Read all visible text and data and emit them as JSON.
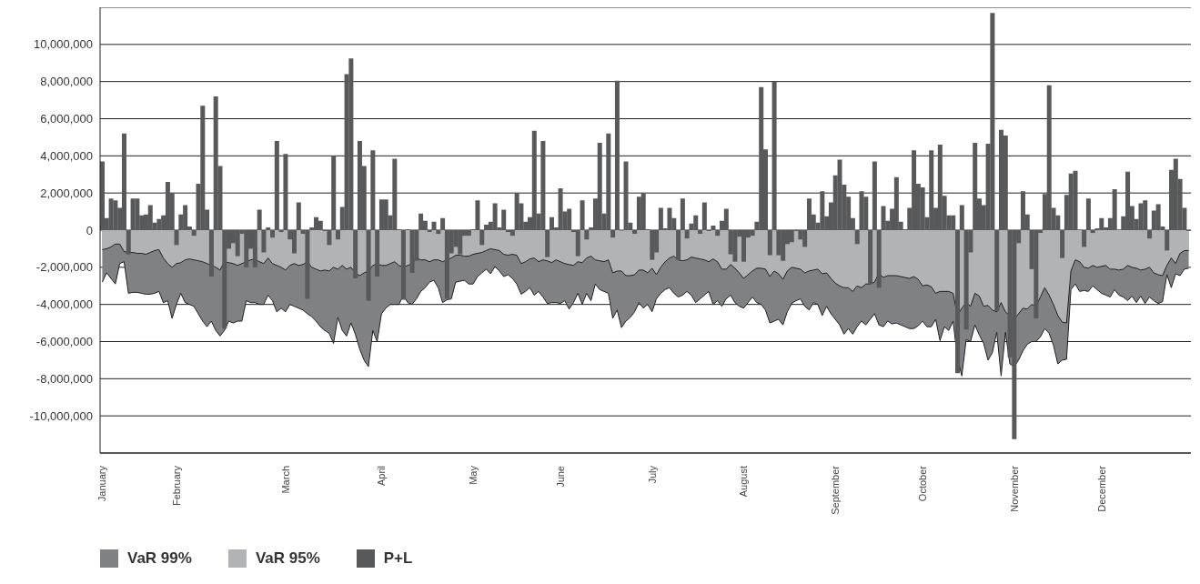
{
  "chart_data": {
    "type": "bar",
    "categories": [
      "January",
      null,
      null,
      null,
      null,
      null,
      null,
      null,
      null,
      null,
      null,
      null,
      null,
      null,
      null,
      null,
      null,
      "February",
      null,
      null,
      null,
      null,
      null,
      null,
      null,
      null,
      null,
      null,
      null,
      null,
      null,
      null,
      null,
      null,
      null,
      null,
      null,
      null,
      null,
      null,
      null,
      null,
      "March",
      null,
      null,
      null,
      null,
      null,
      null,
      null,
      null,
      null,
      null,
      null,
      null,
      null,
      null,
      null,
      null,
      null,
      null,
      null,
      null,
      null,
      "April",
      null,
      null,
      null,
      null,
      null,
      null,
      null,
      null,
      null,
      null,
      null,
      null,
      null,
      null,
      null,
      null,
      null,
      null,
      null,
      null,
      "May",
      null,
      null,
      null,
      null,
      null,
      null,
      null,
      null,
      null,
      null,
      null,
      null,
      null,
      null,
      null,
      null,
      null,
      null,
      null,
      "June",
      null,
      null,
      null,
      null,
      null,
      null,
      null,
      null,
      null,
      null,
      null,
      null,
      null,
      null,
      null,
      null,
      null,
      null,
      null,
      null,
      "July",
      null,
      null,
      null,
      null,
      null,
      null,
      null,
      null,
      null,
      null,
      null,
      null,
      null,
      null,
      null,
      null,
      null,
      null,
      null,
      null,
      "August",
      null,
      null,
      null,
      null,
      null,
      null,
      null,
      null,
      null,
      null,
      null,
      null,
      null,
      null,
      null,
      null,
      null,
      null,
      null,
      null,
      "September",
      null,
      null,
      null,
      null,
      null,
      null,
      null,
      null,
      null,
      null,
      null,
      null,
      null,
      null,
      null,
      null,
      null,
      null,
      null,
      "October",
      null,
      null,
      null,
      null,
      null,
      null,
      null,
      null,
      null,
      null,
      null,
      null,
      null,
      null,
      null,
      null,
      null,
      null,
      null,
      null,
      "November",
      null,
      null,
      null,
      null,
      null,
      null,
      null,
      null,
      null,
      null,
      null,
      null,
      null,
      null,
      null,
      null,
      null,
      null,
      null,
      "December",
      null,
      null,
      null,
      null,
      null,
      null,
      null,
      null,
      null,
      null,
      null,
      null,
      null,
      null,
      null,
      null,
      null,
      null,
      null,
      null
    ],
    "series": [
      {
        "name": "VaR 99%",
        "type": "area",
        "color": "#808184",
        "values": [
          -2800000.0,
          -2300000.0,
          -2600000.0,
          -2900000.0,
          -1800000.0,
          -1700000.0,
          -3400000.0,
          -3350000.0,
          -3350000.0,
          -3400000.0,
          -3450000.0,
          -3450000.0,
          -3400000.0,
          -3300000.0,
          -3900000.0,
          -3800000.0,
          -4750000.0,
          -4000000.0,
          -3400000.0,
          -3900000.0,
          -4000000.0,
          -4100000.0,
          -4500000.0,
          -4900000.0,
          -5200000.0,
          -4900000.0,
          -5400000.0,
          -5700000.0,
          -5400000.0,
          -4900000.0,
          -5000000.0,
          -4900000.0,
          -4900000.0,
          -3800000.0,
          -3900000.0,
          -3900000.0,
          -4000000.0,
          -4000000.0,
          -3500000.0,
          -3800000.0,
          -4400000.0,
          -4200000.0,
          -4400000.0,
          -4000000.0,
          -4100000.0,
          -4200000.0,
          -4300000.0,
          -4500000.0,
          -4650000.0,
          -4900000.0,
          -5200000.0,
          -5400000.0,
          -5550000.0,
          -6100000.0,
          -4700000.0,
          -5400000.0,
          -5700000.0,
          -5000000.0,
          -5600000.0,
          -6400000.0,
          -7000000.0,
          -7350000.0,
          -5400000.0,
          -6000000.0,
          -4500000.0,
          -4200000.0,
          -4000000.0,
          -4000000.0,
          -4000000.0,
          -3500000.0,
          -3900000.0,
          -4000000.0,
          -3700000.0,
          -3300000.0,
          -3100000.0,
          -2800000.0,
          -2700000.0,
          -3100000.0,
          -3900000.0,
          -3750000.0,
          -3700000.0,
          -2800000.0,
          -2750000.0,
          -2700000.0,
          -2900000.0,
          -2900000.0,
          -2500000.0,
          -2300000.0,
          -2100000.0,
          -2350000.0,
          -1950000.0,
          -2200000.0,
          -2500000.0,
          -2400000.0,
          -2600000.0,
          -2900000.0,
          -3450000.0,
          -3300000.0,
          -3100000.0,
          -3500000.0,
          -3300000.0,
          -3600000.0,
          -3950000.0,
          -3900000.0,
          -3900000.0,
          -3950000.0,
          -3800000.0,
          -4250000.0,
          -3900000.0,
          -3400000.0,
          -4000000.0,
          -3400000.0,
          -3800000.0,
          -2900000.0,
          -3200000.0,
          -3300000.0,
          -3400000.0,
          -4750000.0,
          -4300000.0,
          -5250000.0,
          -4900000.0,
          -4700000.0,
          -4400000.0,
          -3900000.0,
          -4200000.0,
          -4000000.0,
          -4400000.0,
          -3700000.0,
          -3400000.0,
          -3200000.0,
          -3100000.0,
          -3400000.0,
          -3600000.0,
          -3500000.0,
          -3300000.0,
          -3500000.0,
          -3900000.0,
          -3700000.0,
          -3500000.0,
          -3300000.0,
          -4000000.0,
          -3800000.0,
          -4100000.0,
          -3700000.0,
          -3500000.0,
          -3900000.0,
          -4100000.0,
          -4200000.0,
          -3900000.0,
          -3600000.0,
          -3900000.0,
          -4000000.0,
          -4300000.0,
          -5000000.0,
          -4900000.0,
          -4800000.0,
          -5100000.0,
          -4400000.0,
          -3950000.0,
          -3800000.0,
          -3700000.0,
          -4100000.0,
          -4300000.0,
          -3900000.0,
          -4000000.0,
          -4600000.0,
          -4100000.0,
          -4500000.0,
          -4800000.0,
          -5100000.0,
          -5600000.0,
          -5300000.0,
          -5600000.0,
          -5200000.0,
          -4900000.0,
          -5100000.0,
          -4800000.0,
          -4500000.0,
          -5100000.0,
          -5200000.0,
          -4900000.0,
          -5050000.0,
          -5000000.0,
          -5100000.0,
          -5200000.0,
          -5300000.0,
          -5300000.0,
          -5150000.0,
          -4900000.0,
          -5200000.0,
          -5200000.0,
          -4800000.0,
          -5950000.0,
          -5200000.0,
          -5400000.0,
          -4900000.0,
          -6900000.0,
          -7850000.0,
          -5900000.0,
          -6000000.0,
          -5100000.0,
          -5650000.0,
          -6100000.0,
          -7000000.0,
          -6600000.0,
          -5500000.0,
          -7850000.0,
          -5500000.0,
          -7200000.0,
          -7350000.0,
          -7000000.0,
          -6500000.0,
          -6150000.0,
          -6000000.0,
          -6000000.0,
          -5750000.0,
          -5300000.0,
          -5550000.0,
          -6200000.0,
          -7200000.0,
          -7000000.0,
          -6950000.0,
          -3200000.0,
          -2900000.0,
          -3300000.0,
          -3250000.0,
          -3300000.0,
          -3000000.0,
          -3200000.0,
          -3400000.0,
          -3500000.0,
          -3600000.0,
          -3200000.0,
          -3500000.0,
          -3600000.0,
          -3800000.0,
          -3550000.0,
          -3900000.0,
          -3550000.0,
          -3950000.0,
          -3600000.0,
          -3800000.0,
          -3950000.0,
          -3850000.0,
          -2400000.0,
          -3100000.0,
          -2350000.0,
          -2450000.0,
          -2100000.0,
          -2050000.0
        ]
      },
      {
        "name": "VaR 95%",
        "type": "area",
        "color": "#b2b3b6",
        "values": [
          -1050000.0,
          -1000000.0,
          -900000.0,
          -750000.0,
          -750000.0,
          -1150000.0,
          -1200000.0,
          -1200000.0,
          -1250000.0,
          -1250000.0,
          -1300000.0,
          -1200000.0,
          -1100000.0,
          -1050000.0,
          -1500000.0,
          -1800000.0,
          -2000000.0,
          -1800000.0,
          -1750000.0,
          -1600000.0,
          -1550000.0,
          -1600000.0,
          -1650000.0,
          -1700000.0,
          -1800000.0,
          -1900000.0,
          -2000000.0,
          -2150000.0,
          -1700000.0,
          -1750000.0,
          -1800000.0,
          -1900000.0,
          -1800000.0,
          -1700000.0,
          -1600000.0,
          -1550000.0,
          -1700000.0,
          -1800000.0,
          -1500000.0,
          -1800000.0,
          -1900000.0,
          -2000000.0,
          -2150000.0,
          -1900000.0,
          -1800000.0,
          -1900000.0,
          -1850000.0,
          -1700000.0,
          -2000000.0,
          -2100000.0,
          -2200000.0,
          -2150000.0,
          -2200000.0,
          -2000000.0,
          -2100000.0,
          -1900000.0,
          -2100000.0,
          -2000000.0,
          -2300000.0,
          -2450000.0,
          -2300000.0,
          -2200000.0,
          -1900000.0,
          -1800000.0,
          -1900000.0,
          -1900000.0,
          -1800000.0,
          -1700000.0,
          -1900000.0,
          -2000000.0,
          -1900000.0,
          -1800000.0,
          -1500000.0,
          -1600000.0,
          -1600000.0,
          -1700000.0,
          -1600000.0,
          -1600000.0,
          -1700000.0,
          -1600000.0,
          -1500000.0,
          -1350000.0,
          -1350000.0,
          -1400000.0,
          -1400000.0,
          -1300000.0,
          -1250000.0,
          -1200000.0,
          -1100000.0,
          -1000000.0,
          -1050000.0,
          -1100000.0,
          -1300000.0,
          -1350000.0,
          -1300000.0,
          -1350000.0,
          -1800000.0,
          -1700000.0,
          -1550000.0,
          -1500000.0,
          -1700000.0,
          -1600000.0,
          -1650000.0,
          -1750000.0,
          -1600000.0,
          -1700000.0,
          -1800000.0,
          -1850000.0,
          -1900000.0,
          -1700000.0,
          -1750000.0,
          -1500000.0,
          -1400000.0,
          -1600000.0,
          -1650000.0,
          -1700000.0,
          -1600000.0,
          -2300000.0,
          -2200000.0,
          -2200000.0,
          -2450000.0,
          -2450000.0,
          -2400000.0,
          -2150000.0,
          -2150000.0,
          -2300000.0,
          -2050000.0,
          -2400000.0,
          -2000000.0,
          -1700000.0,
          -1500000.0,
          -1400000.0,
          -1600000.0,
          -1650000.0,
          -1600000.0,
          -1450000.0,
          -1500000.0,
          -1550000.0,
          -1600000.0,
          -1700000.0,
          -1550000.0,
          -1700000.0,
          -2100000.0,
          -2100000.0,
          -1850000.0,
          -2050000.0,
          -2300000.0,
          -2600000.0,
          -2400000.0,
          -2200000.0,
          -2050000.0,
          -2050000.0,
          -2100000.0,
          -2500000.0,
          -2200000.0,
          -2350000.0,
          -2650000.0,
          -2200000.0,
          -2000000.0,
          -2050000.0,
          -2100000.0,
          -2300000.0,
          -2200000.0,
          -2150000.0,
          -2100000.0,
          -2350000.0,
          -2300000.0,
          -2600000.0,
          -2850000.0,
          -3000000.0,
          -3100000.0,
          -3100000.0,
          -3300000.0,
          -3000000.0,
          -3100000.0,
          -2900000.0,
          -2900000.0,
          -2800000.0,
          -2300000.0,
          -2550000.0,
          -2450000.0,
          -2450000.0,
          -2450000.0,
          -2500000.0,
          -2550000.0,
          -2600000.0,
          -2500000.0,
          -2650000.0,
          -3000000.0,
          -2950000.0,
          -3050000.0,
          -3400000.0,
          -3300000.0,
          -3300000.0,
          -3300000.0,
          -3400000.0,
          -4600000.0,
          -4200000.0,
          -3900000.0,
          -4100000.0,
          -3400000.0,
          -3550000.0,
          -4100000.0,
          -4050000.0,
          -4300000.0,
          -4400000.0,
          -3900000.0,
          -4400000.0,
          -4600000.0,
          -4800000.0,
          -4500000.0,
          -4200000.0,
          -4250000.0,
          -4000000.0,
          -4100000.0,
          -3600000.0,
          -3100000.0,
          -3500000.0,
          -4000000.0,
          -4600000.0,
          -4950000.0,
          -5000000.0,
          -2200000.0,
          -1600000.0,
          -1700000.0,
          -2000000.0,
          -2050000.0,
          -1900000.0,
          -2000000.0,
          -1950000.0,
          -1900000.0,
          -2100000.0,
          -2100000.0,
          -2150000.0,
          -2100000.0,
          -1900000.0,
          -2000000.0,
          -2050000.0,
          -2150000.0,
          -2100000.0,
          -2000000.0,
          -2300000.0,
          -2400000.0,
          -2450000.0,
          -1900000.0,
          -1500000.0,
          -1800000.0,
          -1250000.0,
          -1100000.0,
          -1100000.0
        ]
      },
      {
        "name": "P+L",
        "color": "#58595b",
        "values": [
          3700000.0,
          650000.0,
          1700000.0,
          1600000.0,
          1200000.0,
          5200000.0,
          -1300000.0,
          1700000.0,
          1700000.0,
          800000.0,
          850000.0,
          1350000.0,
          400000.0,
          600000.0,
          800000.0,
          2600000.0,
          2000000.0,
          -800000.0,
          850000.0,
          1350000.0,
          200000.0,
          -300000.0,
          2500000.0,
          6700000.0,
          1100000.0,
          -2500000.0,
          7200000.0,
          3450000.0,
          -5300000.0,
          -1000000.0,
          -700000.0,
          -1400000.0,
          -200000.0,
          -2000000.0,
          -1000000.0,
          -2000000.0,
          1100000.0,
          -1200000.0,
          150000.0,
          -400000.0,
          4800000.0,
          -100000.0,
          4100000.0,
          -500000.0,
          -1250000.0,
          1500000.0,
          -200000.0,
          -3700000.0,
          150000.0,
          700000.0,
          500000.0,
          -50000.0,
          -800000.0,
          4000000.0,
          -500000.0,
          1250000.0,
          8400000.0,
          9250000.0,
          -2600000.0,
          4800000.0,
          3450000.0,
          -3800000.0,
          4300000.0,
          -2500000.0,
          1650000.0,
          1650000.0,
          800000.0,
          3850000.0,
          50000.0,
          -3750000.0,
          50000.0,
          -2300000.0,
          -1650000.0,
          900000.0,
          500000.0,
          -100000.0,
          450000.0,
          -200000.0,
          650000.0,
          -3700000.0,
          -1250000.0,
          -900000.0,
          -1300000.0,
          -300000.0,
          -300000.0,
          50000.0,
          1600000.0,
          -800000.0,
          300000.0,
          450000.0,
          1450000.0,
          150000.0,
          1100000.0,
          -100000.0,
          -300000.0,
          2000000.0,
          1450000.0,
          450000.0,
          700000.0,
          5350000.0,
          900000.0,
          4800000.0,
          -1450000.0,
          700000.0,
          150000.0,
          2250000.0,
          1000000.0,
          1150000.0,
          -100000.0,
          -1400000.0,
          1600000.0,
          -500000.0,
          150000.0,
          1700000.0,
          4700000.0,
          900000.0,
          5200000.0,
          -400000.0,
          8050000.0,
          -30000.0,
          3700000.0,
          400000.0,
          -200000.0,
          1800000.0,
          2000000.0,
          50000.0,
          -1600000.0,
          -1200000.0,
          1200000.0,
          100000.0,
          1200000.0,
          650000.0,
          -1600000.0,
          1700000.0,
          -450000.0,
          350000.0,
          800000.0,
          -200000.0,
          1500000.0,
          -50000.0,
          250000.0,
          -300000.0,
          500000.0,
          1150000.0,
          -1300000.0,
          -1700000.0,
          -350000.0,
          -1700000.0,
          -400000.0,
          -300000.0,
          450000.0,
          7700000.0,
          4350000.0,
          -1350000.0,
          8000000.0,
          -1350000.0,
          -1650000.0,
          -750000.0,
          -650000.0,
          -50000.0,
          -500000.0,
          -900000.0,
          1700000.0,
          850000.0,
          400000.0,
          2100000.0,
          750000.0,
          1500000.0,
          2950000.0,
          3800000.0,
          2450000.0,
          1800000.0,
          650000.0,
          -750000.0,
          2100000.0,
          1800000.0,
          -2900000.0,
          3700000.0,
          -3100000.0,
          1300000.0,
          500000.0,
          1150000.0,
          2850000.0,
          450000.0,
          50000.0,
          1200000.0,
          4300000.0,
          2500000.0,
          2300000.0,
          700000.0,
          4300000.0,
          1200000.0,
          4600000.0,
          1850000.0,
          800000.0,
          800000.0,
          -7700000.0,
          1350000.0,
          -5350000.0,
          -1200000.0,
          4700000.0,
          1700000.0,
          1350000.0,
          4650000.0,
          11700000.0,
          -4350000.0,
          5400000.0,
          5100000.0,
          -6850000.0,
          -11250000.0,
          -700000.0,
          2100000.0,
          850000.0,
          -2100000.0,
          -4750000.0,
          -150000.0,
          1950000.0,
          7800000.0,
          1200000.0,
          800000.0,
          -1500000.0,
          1900000.0,
          3050000.0,
          3200000.0,
          30000.0,
          -900000.0,
          1700000.0,
          -150000.0,
          100000.0,
          650000.0,
          150000.0,
          650000.0,
          2200000.0,
          30000.0,
          750000.0,
          3150000.0,
          1300000.0,
          600000.0,
          1450000.0,
          1600000.0,
          -450000.0,
          1050000.0,
          1400000.0,
          200000.0,
          -1100000.0,
          3250000.0,
          3850000.0,
          2750000.0,
          1200000.0,
          -50000.0
        ]
      }
    ],
    "ylim": [
      -12000000,
      12000000
    ],
    "yticks": [
      {
        "value": -10000000,
        "label": "-10,000,000"
      },
      {
        "value": -8000000,
        "label": "-8,000,000"
      },
      {
        "value": -6000000,
        "label": "-6,000,000"
      },
      {
        "value": -4000000,
        "label": "-4,000,000"
      },
      {
        "value": -2000000,
        "label": "-2,000,000"
      },
      0,
      {
        "value": 2000000,
        "label": "2,000,000"
      },
      {
        "value": 4000000,
        "label": "4,000,000"
      },
      {
        "value": 6000000,
        "label": "6,000,000"
      },
      {
        "value": 8000000,
        "label": "8,000,000"
      },
      {
        "value": 10000000,
        "label": "10,000,000"
      }
    ],
    "grid": "y",
    "legend": "bottom left"
  }
}
